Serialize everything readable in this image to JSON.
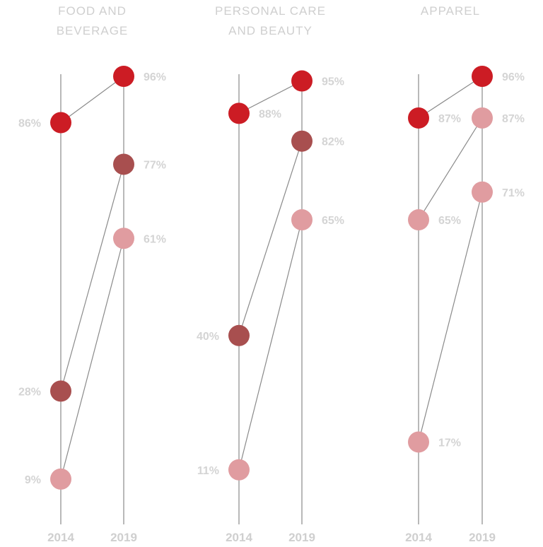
{
  "chart_data": [
    {
      "type": "slope",
      "title_lines": [
        "FOOD AND",
        "BEVERAGE"
      ],
      "x": [
        "2014",
        "2019"
      ],
      "ylim": [
        0,
        100
      ],
      "series": [
        {
          "values": [
            86,
            96
          ],
          "labels": [
            "86%",
            "96%"
          ],
          "color": "#cc1c24"
        },
        {
          "values": [
            28,
            77
          ],
          "labels": [
            "28%",
            "77%"
          ],
          "color": "#a84f4f"
        },
        {
          "values": [
            9,
            61
          ],
          "labels": [
            "9%",
            "61%"
          ],
          "color": "#e09ca0"
        }
      ]
    },
    {
      "type": "slope",
      "title_lines": [
        "PERSONAL CARE",
        "AND BEAUTY"
      ],
      "x": [
        "2014",
        "2019"
      ],
      "ylim": [
        0,
        100
      ],
      "series": [
        {
          "values": [
            88,
            95
          ],
          "labels": [
            "88%",
            "95%"
          ],
          "color": "#cc1c24"
        },
        {
          "values": [
            40,
            82
          ],
          "labels": [
            "40%",
            "82%"
          ],
          "color": "#a84f4f"
        },
        {
          "values": [
            11,
            65
          ],
          "labels": [
            "11%",
            "65%"
          ],
          "color": "#e09ca0"
        }
      ]
    },
    {
      "type": "slope",
      "title_lines": [
        "APPAREL"
      ],
      "x": [
        "2014",
        "2019"
      ],
      "ylim": [
        0,
        100
      ],
      "series": [
        {
          "values": [
            87,
            96
          ],
          "labels": [
            "87%",
            "96%"
          ],
          "color": "#cc1c24"
        },
        {
          "values": [
            65,
            87
          ],
          "labels": [
            "65%",
            "87%"
          ],
          "color": "#e09ca0"
        },
        {
          "values": [
            17,
            71
          ],
          "labels": [
            "17%",
            "71%"
          ],
          "color": "#e09ca0"
        }
      ]
    }
  ]
}
